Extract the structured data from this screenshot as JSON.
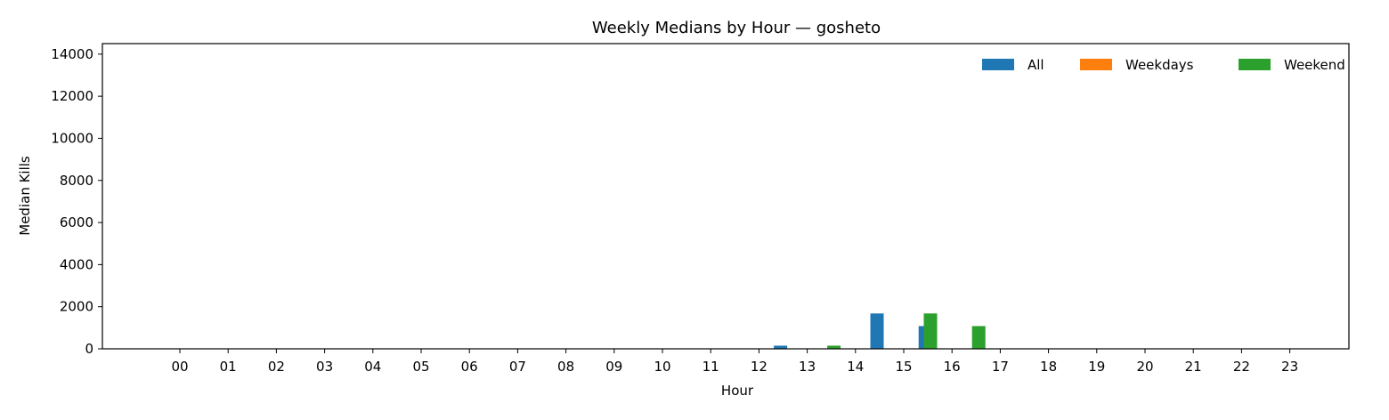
{
  "chart_data": {
    "type": "bar",
    "title": "Weekly Medians by Hour — gosheto",
    "xlabel": "Hour",
    "ylabel": "Median Kills",
    "categories": [
      "00",
      "01",
      "02",
      "03",
      "04",
      "05",
      "06",
      "07",
      "08",
      "09",
      "10",
      "11",
      "12",
      "13",
      "14",
      "15",
      "16",
      "17",
      "18",
      "19",
      "20",
      "21",
      "22",
      "23"
    ],
    "series": [
      {
        "name": "All",
        "color": "#1f77b4",
        "values": [
          0,
          0,
          0,
          0,
          0,
          0,
          0,
          0,
          0,
          0,
          0,
          0,
          0,
          150,
          0,
          1680,
          1080,
          0,
          0,
          0,
          0,
          0,
          0,
          0
        ]
      },
      {
        "name": "Weekdays",
        "color": "#ff7f0e",
        "values": [
          0,
          0,
          0,
          0,
          0,
          0,
          0,
          0,
          0,
          0,
          0,
          0,
          0,
          0,
          0,
          0,
          0,
          0,
          0,
          0,
          0,
          0,
          0,
          0
        ]
      },
      {
        "name": "Weekend",
        "color": "#2ca02c",
        "values": [
          0,
          0,
          0,
          0,
          0,
          0,
          0,
          0,
          0,
          0,
          0,
          0,
          0,
          150,
          0,
          1680,
          1080,
          0,
          0,
          0,
          0,
          0,
          0,
          0
        ]
      }
    ],
    "ylim": [
      0,
      14500
    ],
    "yticks": [
      0,
      2000,
      4000,
      6000,
      8000,
      10000,
      12000,
      14000
    ],
    "grid": false,
    "legend": {
      "placement": "top-right",
      "columns": 3
    }
  }
}
